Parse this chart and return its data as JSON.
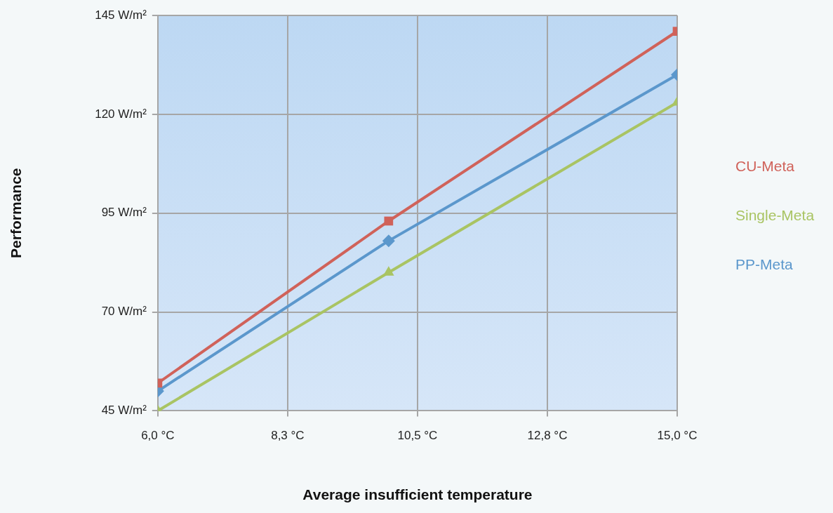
{
  "chart_data": {
    "type": "line",
    "xlabel": "Average insufficient temperature",
    "ylabel": "Performance",
    "x": [
      6.0,
      10.0,
      15.0
    ],
    "series": [
      {
        "name": "CU-Meta",
        "color": "#d0625a",
        "values": [
          52,
          93,
          141
        ],
        "marker": "square"
      },
      {
        "name": "Single-Meta",
        "color": "#a9c463",
        "values": [
          45,
          80,
          123
        ],
        "marker": "triangle"
      },
      {
        "name": "PP-Meta",
        "color": "#5b97cc",
        "values": [
          50,
          88,
          130
        ],
        "marker": "diamond"
      }
    ],
    "xlim": [
      6.0,
      15.0
    ],
    "xticks": [
      {
        "value": 6.0,
        "label": "6,0 °C"
      },
      {
        "value": 8.25,
        "label": "8,3 °C"
      },
      {
        "value": 10.5,
        "label": "10,5 °C"
      },
      {
        "value": 12.75,
        "label": "12,8 °C"
      },
      {
        "value": 15.0,
        "label": "15,0 °C"
      }
    ],
    "ylim": [
      45,
      145
    ],
    "yticks": [
      {
        "value": 45,
        "label": "45 W/m²"
      },
      {
        "value": 70,
        "label": "70 W/m²"
      },
      {
        "value": 95,
        "label": "95 W/m²"
      },
      {
        "value": 120,
        "label": "120 W/m²"
      },
      {
        "value": 145,
        "label": "145 W/m²"
      }
    ],
    "grid": true,
    "legend": "right",
    "line_style": "solid"
  }
}
